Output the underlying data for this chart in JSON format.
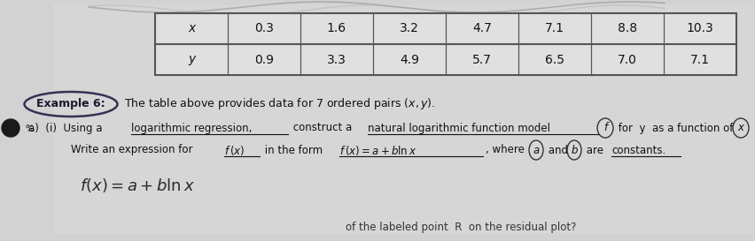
{
  "table": {
    "x_label": "x",
    "y_label": "y",
    "x_values": [
      "0.3",
      "1.6",
      "3.2",
      "4.7",
      "7.1",
      "8.8",
      "10.3"
    ],
    "y_values": [
      "0.9",
      "3.3",
      "4.9",
      "5.7",
      "6.5",
      "7.0",
      "7.1"
    ]
  },
  "bg_color": "#d2d2d2",
  "table_bg": "#e8e8e8",
  "text_color": "#1a1a1a"
}
